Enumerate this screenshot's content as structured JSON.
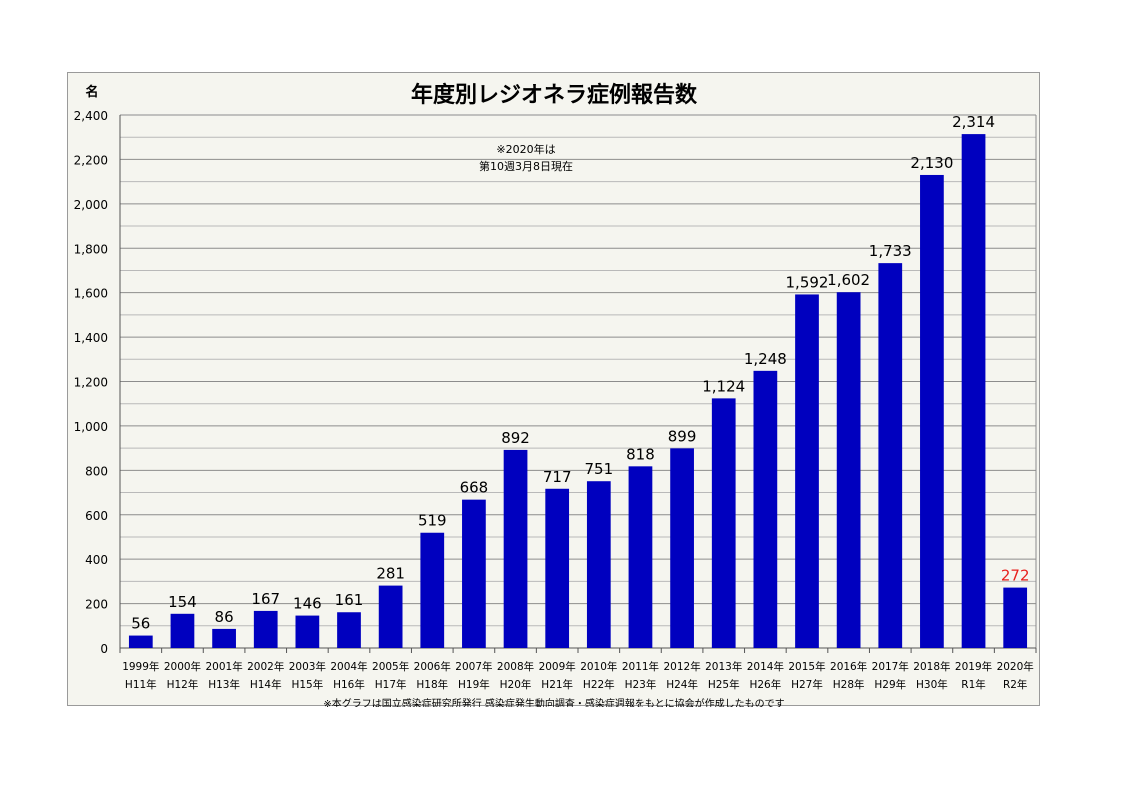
{
  "chart_data": {
    "type": "bar",
    "title": "年度別レジオネラ症例報告数",
    "ylabel": "名",
    "ylim": [
      0,
      2400
    ],
    "yticks": [
      "0",
      "200",
      "400",
      "600",
      "800",
      "1,000",
      "1,200",
      "1,400",
      "1,600",
      "1,800",
      "2,000",
      "2,200",
      "2,400"
    ],
    "grid": true,
    "categories": [
      {
        "line1": "1999年",
        "line2": "H11年"
      },
      {
        "line1": "2000年",
        "line2": "H12年"
      },
      {
        "line1": "2001年",
        "line2": "H13年"
      },
      {
        "line1": "2002年",
        "line2": "H14年"
      },
      {
        "line1": "2003年",
        "line2": "H15年"
      },
      {
        "line1": "2004年",
        "line2": "H16年"
      },
      {
        "line1": "2005年",
        "line2": "H17年"
      },
      {
        "line1": "2006年",
        "line2": "H18年"
      },
      {
        "line1": "2007年",
        "line2": "H19年"
      },
      {
        "line1": "2008年",
        "line2": "H20年"
      },
      {
        "line1": "2009年",
        "line2": "H21年"
      },
      {
        "line1": "2010年",
        "line2": "H22年"
      },
      {
        "line1": "2011年",
        "line2": "H23年"
      },
      {
        "line1": "2012年",
        "line2": "H24年"
      },
      {
        "line1": "2013年",
        "line2": "H25年"
      },
      {
        "line1": "2014年",
        "line2": "H26年"
      },
      {
        "line1": "2015年",
        "line2": "H27年"
      },
      {
        "line1": "2016年",
        "line2": "H28年"
      },
      {
        "line1": "2017年",
        "line2": "H29年"
      },
      {
        "line1": "2018年",
        "line2": "H30年"
      },
      {
        "line1": "2019年",
        "line2": "R1年"
      },
      {
        "line1": "2020年",
        "line2": "R2年"
      }
    ],
    "values": [
      56,
      154,
      86,
      167,
      146,
      161,
      281,
      519,
      668,
      892,
      717,
      751,
      818,
      899,
      1124,
      1248,
      1592,
      1602,
      1733,
      2130,
      2314,
      272
    ],
    "value_labels": [
      "56",
      "154",
      "86",
      "167",
      "146",
      "161",
      "281",
      "519",
      "668",
      "892",
      "717",
      "751",
      "818",
      "899",
      "1,124",
      "1,248",
      "1,592",
      "1,602",
      "1,733",
      "2,130",
      "2,314",
      "272"
    ],
    "bar_color": "#0000bf",
    "highlight_label_color": "#e8201c",
    "highlight_index": 21,
    "annotation": [
      "※2020年は",
      "第10週3月8日現在"
    ],
    "footnote": "※本グラフは国立感染症研究所発行 感染症発生動向調査・感染症週報をもとに協会が作成したものです"
  }
}
